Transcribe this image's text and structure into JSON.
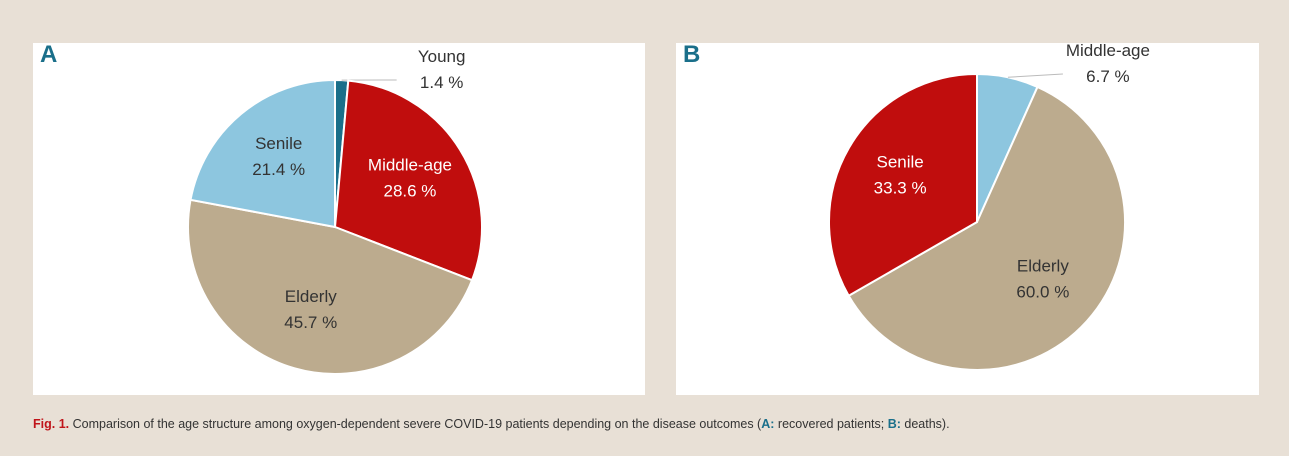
{
  "chart_data": [
    {
      "type": "pie",
      "title": "A",
      "categories": [
        "Young",
        "Middle-age",
        "Elderly",
        "Senile"
      ],
      "values": [
        1.4,
        28.6,
        45.7,
        21.4
      ],
      "value_labels": [
        "1.4 %",
        "28.6 %",
        "45.7 %",
        "21.4 %"
      ],
      "colors": [
        "#1a6f8a",
        "#c00d0d",
        "#bcab8e",
        "#8dc6df"
      ]
    },
    {
      "type": "pie",
      "title": "B",
      "categories": [
        "Middle-age",
        "Elderly",
        "Senile"
      ],
      "values": [
        6.7,
        60.0,
        33.3
      ],
      "value_labels": [
        "6.7 %",
        "60.0 %",
        "33.3 %"
      ],
      "colors": [
        "#8dc6df",
        "#bcab8e",
        "#c00d0d"
      ]
    }
  ],
  "caption": {
    "label": "Fig. 1.",
    "text": "Comparison of the age structure among oxygen-dependent severe COVID-19 patients depending on the disease outcomes (",
    "a_key": "A:",
    "a_text": "recovered patients;",
    "b_key": "B:",
    "b_text": "deaths)."
  }
}
